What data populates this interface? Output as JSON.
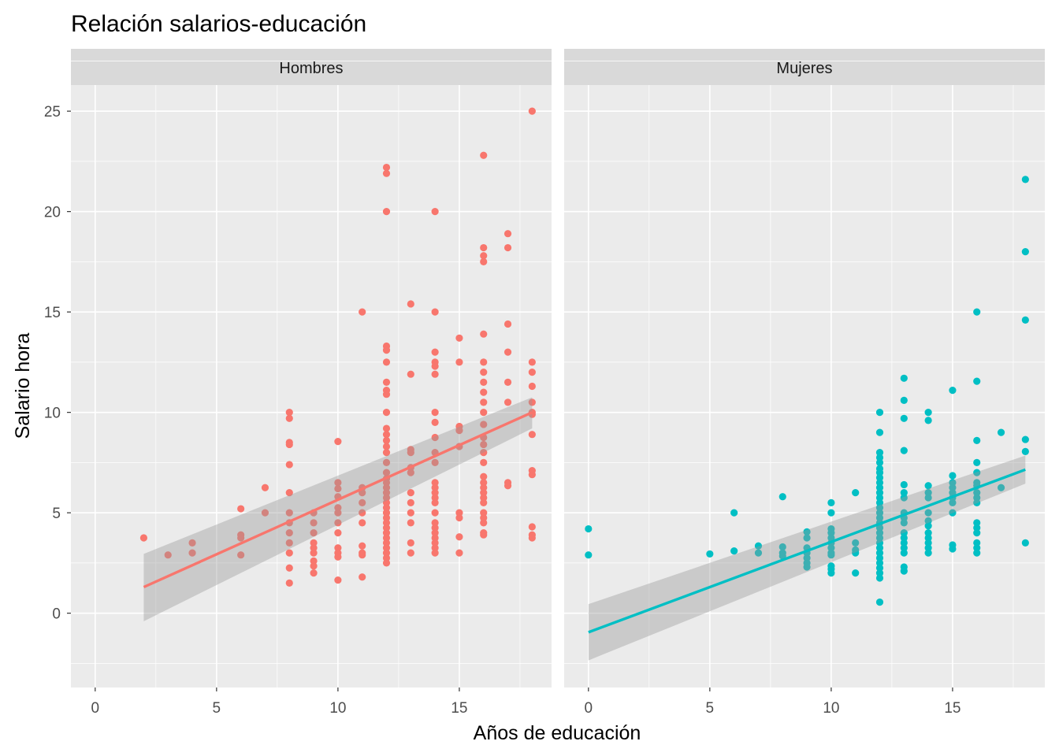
{
  "chart_data": {
    "type": "scatter",
    "title": "Relación salarios-educación",
    "xlabel": "Años de educación",
    "ylabel": "Salario hora",
    "xlim": [
      -1,
      18.8
    ],
    "ylim": [
      -3.7,
      26.3
    ],
    "x_ticks": [
      0,
      5,
      10,
      15
    ],
    "y_ticks": [
      0,
      5,
      10,
      15,
      20,
      25
    ],
    "grid": true,
    "legend": "none",
    "facets": [
      {
        "label": "Hombres",
        "color": "#F8766D",
        "fit": {
          "x": [
            2,
            18
          ],
          "y": [
            1.3,
            10.0
          ],
          "ci_lower": [
            -0.4,
            9.2
          ],
          "ci_upper": [
            2.95,
            10.75
          ]
        },
        "points": [
          [
            2,
            3.75
          ],
          [
            3,
            2.9
          ],
          [
            4,
            3.5
          ],
          [
            4,
            3.0
          ],
          [
            6,
            5.2
          ],
          [
            6,
            3.9
          ],
          [
            6,
            3.75
          ],
          [
            6,
            2.9
          ],
          [
            7,
            6.25
          ],
          [
            7,
            5.0
          ],
          [
            8,
            10.0
          ],
          [
            8,
            9.7
          ],
          [
            8,
            8.5
          ],
          [
            8,
            8.4
          ],
          [
            8,
            7.4
          ],
          [
            8,
            6.0
          ],
          [
            8,
            5.0
          ],
          [
            8,
            4.5
          ],
          [
            8,
            4.0
          ],
          [
            8,
            3.5
          ],
          [
            8,
            3.0
          ],
          [
            8,
            2.25
          ],
          [
            8,
            1.5
          ],
          [
            9,
            5.0
          ],
          [
            9,
            4.5
          ],
          [
            9,
            4.0
          ],
          [
            9,
            3.5
          ],
          [
            9,
            3.25
          ],
          [
            9,
            3.0
          ],
          [
            9,
            2.6
          ],
          [
            9,
            2.35
          ],
          [
            9,
            2.0
          ],
          [
            10,
            8.55
          ],
          [
            10,
            6.5
          ],
          [
            10,
            6.2
          ],
          [
            10,
            5.8
          ],
          [
            10,
            5.25
          ],
          [
            10,
            5.0
          ],
          [
            10,
            4.5
          ],
          [
            10,
            4.0
          ],
          [
            10,
            3.25
          ],
          [
            10,
            3.0
          ],
          [
            10,
            2.8
          ],
          [
            10,
            1.65
          ],
          [
            11,
            15.0
          ],
          [
            11,
            6.25
          ],
          [
            11,
            6.0
          ],
          [
            11,
            5.5
          ],
          [
            11,
            5.0
          ],
          [
            11,
            4.5
          ],
          [
            11,
            3.35
          ],
          [
            11,
            3.0
          ],
          [
            11,
            2.9
          ],
          [
            11,
            1.8
          ],
          [
            12,
            22.2
          ],
          [
            12,
            21.9
          ],
          [
            12,
            20.0
          ],
          [
            12,
            13.3
          ],
          [
            12,
            13.1
          ],
          [
            12,
            12.5
          ],
          [
            12,
            11.5
          ],
          [
            12,
            11.1
          ],
          [
            12,
            10.9
          ],
          [
            12,
            10.0
          ],
          [
            12,
            9.2
          ],
          [
            12,
            8.9
          ],
          [
            12,
            8.6
          ],
          [
            12,
            8.3
          ],
          [
            12,
            8.0
          ],
          [
            12,
            7.5
          ],
          [
            12,
            7.0
          ],
          [
            12,
            6.7
          ],
          [
            12,
            6.5
          ],
          [
            12,
            6.25
          ],
          [
            12,
            6.0
          ],
          [
            12,
            5.75
          ],
          [
            12,
            5.5
          ],
          [
            12,
            5.25
          ],
          [
            12,
            5.0
          ],
          [
            12,
            4.75
          ],
          [
            12,
            4.5
          ],
          [
            12,
            4.25
          ],
          [
            12,
            4.0
          ],
          [
            12,
            3.75
          ],
          [
            12,
            3.5
          ],
          [
            12,
            3.25
          ],
          [
            12,
            3.0
          ],
          [
            12,
            2.75
          ],
          [
            12,
            2.5
          ],
          [
            13,
            15.4
          ],
          [
            13,
            11.9
          ],
          [
            13,
            8.15
          ],
          [
            13,
            8.0
          ],
          [
            13,
            7.25
          ],
          [
            13,
            7.0
          ],
          [
            13,
            6.0
          ],
          [
            13,
            5.5
          ],
          [
            13,
            5.0
          ],
          [
            13,
            4.5
          ],
          [
            13,
            3.5
          ],
          [
            13,
            3.0
          ],
          [
            14,
            20.0
          ],
          [
            14,
            15.0
          ],
          [
            14,
            13.0
          ],
          [
            14,
            12.5
          ],
          [
            14,
            12.3
          ],
          [
            14,
            11.9
          ],
          [
            14,
            10.0
          ],
          [
            14,
            9.5
          ],
          [
            14,
            8.75
          ],
          [
            14,
            8.0
          ],
          [
            14,
            7.5
          ],
          [
            14,
            6.5
          ],
          [
            14,
            6.25
          ],
          [
            14,
            6.0
          ],
          [
            14,
            5.75
          ],
          [
            14,
            5.5
          ],
          [
            14,
            5.0
          ],
          [
            14,
            4.5
          ],
          [
            14,
            4.25
          ],
          [
            14,
            4.0
          ],
          [
            14,
            3.75
          ],
          [
            14,
            3.5
          ],
          [
            14,
            3.25
          ],
          [
            14,
            3.0
          ],
          [
            15,
            13.7
          ],
          [
            15,
            12.5
          ],
          [
            15,
            9.3
          ],
          [
            15,
            9.1
          ],
          [
            15,
            8.3
          ],
          [
            15,
            5.0
          ],
          [
            15,
            4.75
          ],
          [
            15,
            3.8
          ],
          [
            15,
            3.0
          ],
          [
            16,
            22.8
          ],
          [
            16,
            18.2
          ],
          [
            16,
            17.8
          ],
          [
            16,
            17.5
          ],
          [
            16,
            13.9
          ],
          [
            16,
            12.5
          ],
          [
            16,
            12.0
          ],
          [
            16,
            11.5
          ],
          [
            16,
            11.0
          ],
          [
            16,
            10.5
          ],
          [
            16,
            10.0
          ],
          [
            16,
            9.4
          ],
          [
            16,
            8.75
          ],
          [
            16,
            8.4
          ],
          [
            16,
            8.0
          ],
          [
            16,
            7.5
          ],
          [
            16,
            6.8
          ],
          [
            16,
            6.5
          ],
          [
            16,
            6.25
          ],
          [
            16,
            6.0
          ],
          [
            16,
            5.75
          ],
          [
            16,
            5.5
          ],
          [
            16,
            5.0
          ],
          [
            16,
            4.75
          ],
          [
            16,
            4.5
          ],
          [
            16,
            4.0
          ],
          [
            16,
            3.9
          ],
          [
            17,
            18.9
          ],
          [
            17,
            18.2
          ],
          [
            17,
            14.4
          ],
          [
            17,
            13.0
          ],
          [
            17,
            11.5
          ],
          [
            17,
            10.5
          ],
          [
            17,
            6.5
          ],
          [
            17,
            6.35
          ],
          [
            18,
            25.0
          ],
          [
            18,
            12.5
          ],
          [
            18,
            12.0
          ],
          [
            18,
            11.3
          ],
          [
            18,
            10.5
          ],
          [
            18,
            10.0
          ],
          [
            18,
            9.9
          ],
          [
            18,
            8.9
          ],
          [
            18,
            7.1
          ],
          [
            18,
            6.9
          ],
          [
            18,
            4.3
          ],
          [
            18,
            3.9
          ],
          [
            18,
            3.75
          ]
        ]
      },
      {
        "label": "Mujeres",
        "color": "#00BFC4",
        "fit": {
          "x": [
            0,
            18
          ],
          "y": [
            -0.95,
            7.15
          ],
          "ci_lower": [
            -2.35,
            6.45
          ],
          "ci_upper": [
            0.45,
            7.85
          ]
        },
        "points": [
          [
            0,
            4.2
          ],
          [
            0,
            2.9
          ],
          [
            5,
            2.95
          ],
          [
            6,
            5.0
          ],
          [
            6,
            3.1
          ],
          [
            7,
            3.35
          ],
          [
            7,
            3.0
          ],
          [
            8,
            5.8
          ],
          [
            8,
            3.3
          ],
          [
            8,
            3.0
          ],
          [
            8,
            2.85
          ],
          [
            9,
            4.05
          ],
          [
            9,
            3.75
          ],
          [
            9,
            3.25
          ],
          [
            9,
            3.0
          ],
          [
            9,
            2.75
          ],
          [
            9,
            2.5
          ],
          [
            9,
            2.3
          ],
          [
            10,
            5.5
          ],
          [
            10,
            5.0
          ],
          [
            10,
            4.2
          ],
          [
            10,
            4.0
          ],
          [
            10,
            3.75
          ],
          [
            10,
            3.5
          ],
          [
            10,
            3.25
          ],
          [
            10,
            3.0
          ],
          [
            10,
            2.9
          ],
          [
            10,
            2.35
          ],
          [
            10,
            2.2
          ],
          [
            10,
            2.0
          ],
          [
            11,
            6.0
          ],
          [
            11,
            3.5
          ],
          [
            11,
            3.15
          ],
          [
            11,
            3.0
          ],
          [
            11,
            2.0
          ],
          [
            12,
            10.0
          ],
          [
            12,
            9.0
          ],
          [
            12,
            8.0
          ],
          [
            12,
            7.75
          ],
          [
            12,
            7.5
          ],
          [
            12,
            7.2
          ],
          [
            12,
            7.0
          ],
          [
            12,
            6.75
          ],
          [
            12,
            6.5
          ],
          [
            12,
            6.25
          ],
          [
            12,
            6.0
          ],
          [
            12,
            5.75
          ],
          [
            12,
            5.5
          ],
          [
            12,
            5.25
          ],
          [
            12,
            5.0
          ],
          [
            12,
            4.75
          ],
          [
            12,
            4.5
          ],
          [
            12,
            4.25
          ],
          [
            12,
            4.0
          ],
          [
            12,
            3.75
          ],
          [
            12,
            3.5
          ],
          [
            12,
            3.25
          ],
          [
            12,
            3.0
          ],
          [
            12,
            2.75
          ],
          [
            12,
            2.5
          ],
          [
            12,
            2.25
          ],
          [
            12,
            2.0
          ],
          [
            12,
            1.75
          ],
          [
            12,
            0.55
          ],
          [
            13,
            11.7
          ],
          [
            13,
            10.6
          ],
          [
            13,
            9.7
          ],
          [
            13,
            8.1
          ],
          [
            13,
            6.4
          ],
          [
            13,
            6.0
          ],
          [
            13,
            5.75
          ],
          [
            13,
            5.0
          ],
          [
            13,
            4.75
          ],
          [
            13,
            4.5
          ],
          [
            13,
            4.0
          ],
          [
            13,
            3.75
          ],
          [
            13,
            3.5
          ],
          [
            13,
            3.25
          ],
          [
            13,
            3.0
          ],
          [
            13,
            2.3
          ],
          [
            13,
            2.1
          ],
          [
            14,
            10.0
          ],
          [
            14,
            9.6
          ],
          [
            14,
            6.35
          ],
          [
            14,
            6.0
          ],
          [
            14,
            5.75
          ],
          [
            14,
            5.0
          ],
          [
            14,
            4.6
          ],
          [
            14,
            4.35
          ],
          [
            14,
            4.0
          ],
          [
            14,
            3.75
          ],
          [
            14,
            3.5
          ],
          [
            14,
            3.25
          ],
          [
            14,
            3.0
          ],
          [
            15,
            11.1
          ],
          [
            15,
            6.85
          ],
          [
            15,
            6.5
          ],
          [
            15,
            6.25
          ],
          [
            15,
            6.0
          ],
          [
            15,
            5.75
          ],
          [
            15,
            5.5
          ],
          [
            15,
            5.0
          ],
          [
            15,
            3.4
          ],
          [
            15,
            3.2
          ],
          [
            16,
            15.0
          ],
          [
            16,
            11.55
          ],
          [
            16,
            8.6
          ],
          [
            16,
            7.5
          ],
          [
            16,
            7.0
          ],
          [
            16,
            6.5
          ],
          [
            16,
            6.35
          ],
          [
            16,
            6.0
          ],
          [
            16,
            5.75
          ],
          [
            16,
            5.5
          ],
          [
            16,
            4.5
          ],
          [
            16,
            4.25
          ],
          [
            16,
            4.0
          ],
          [
            16,
            3.5
          ],
          [
            16,
            3.25
          ],
          [
            16,
            3.0
          ],
          [
            17,
            9.0
          ],
          [
            17,
            6.25
          ],
          [
            18,
            21.6
          ],
          [
            18,
            18.0
          ],
          [
            18,
            14.6
          ],
          [
            18,
            8.65
          ],
          [
            18,
            8.05
          ],
          [
            18,
            3.5
          ]
        ]
      }
    ]
  }
}
